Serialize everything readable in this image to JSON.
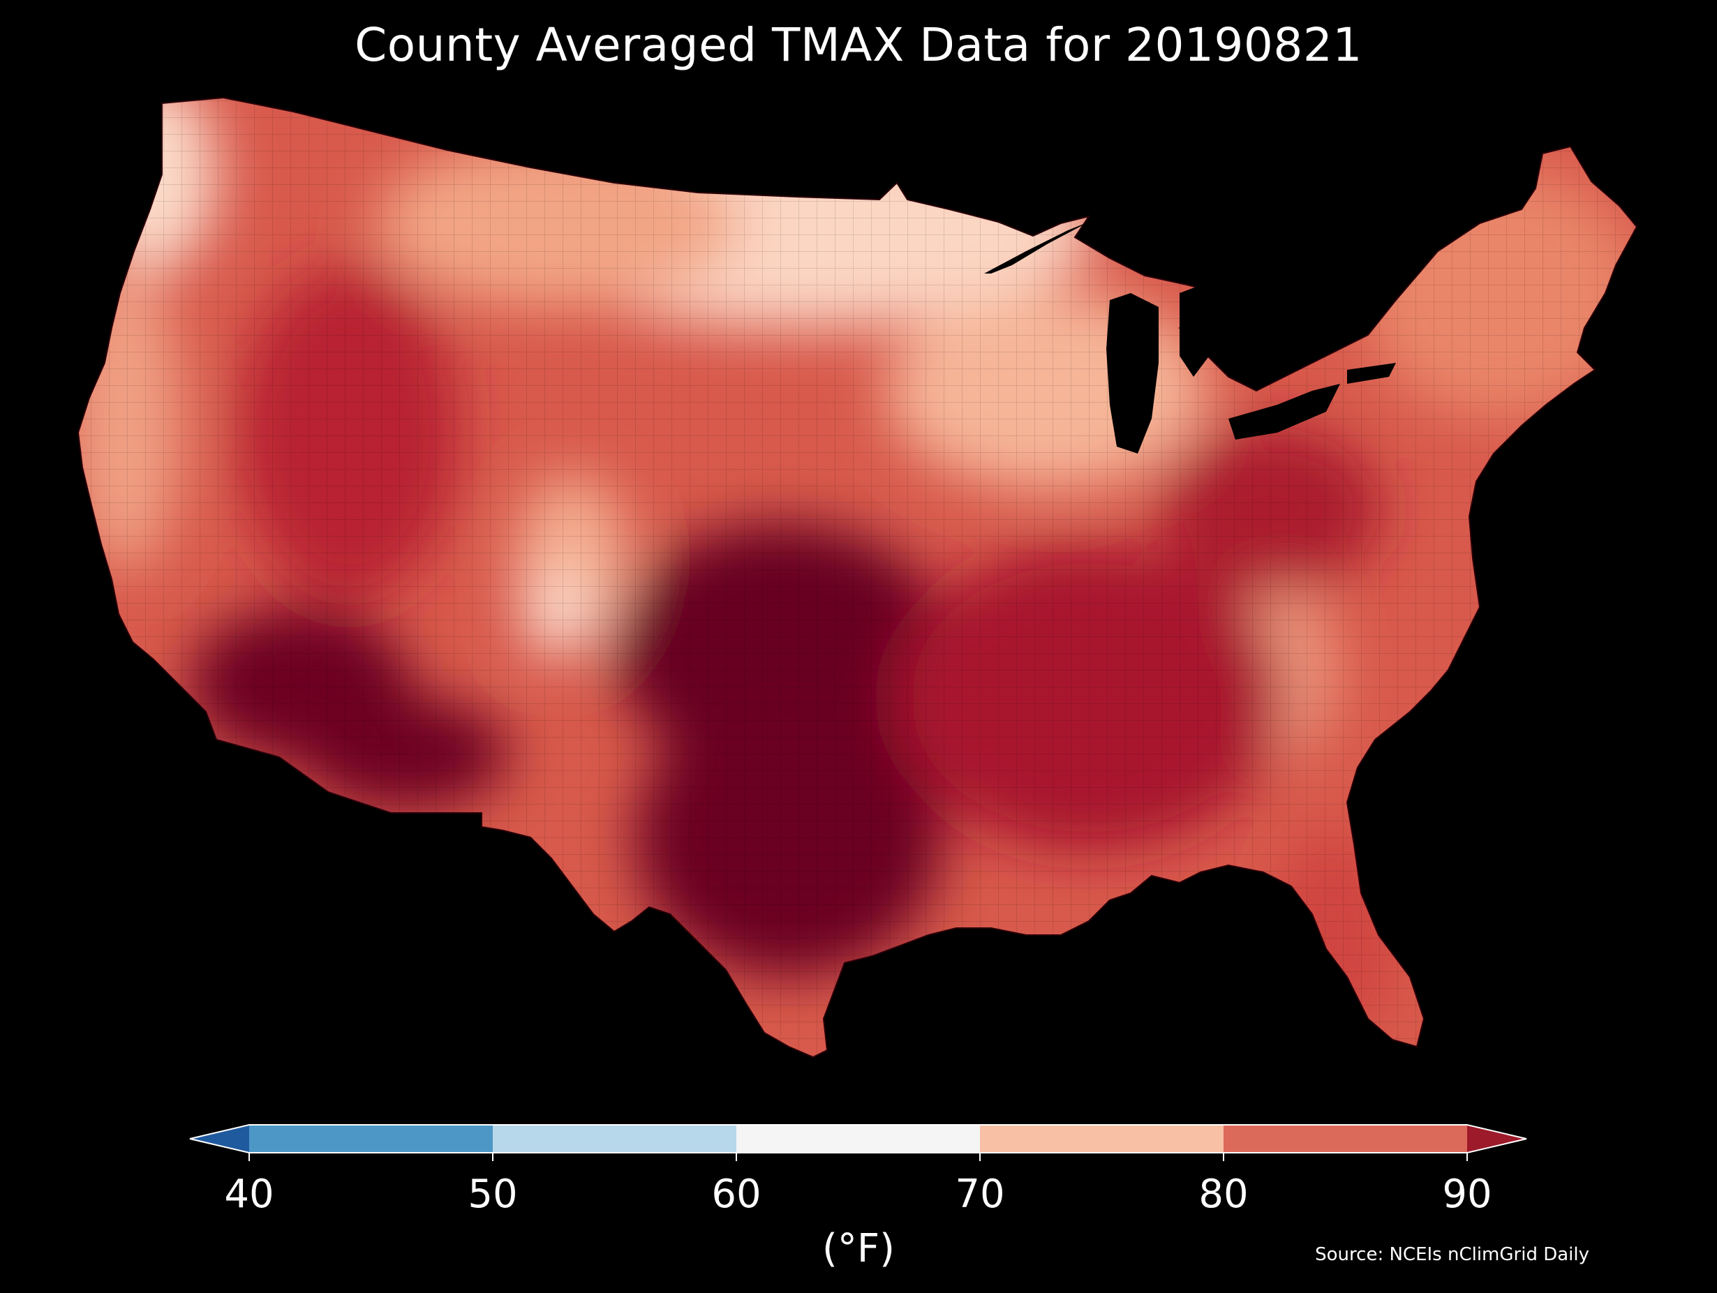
{
  "title": "County Averaged TMAX Data for 20190821",
  "colorbar": {
    "ticks": [
      "40",
      "50",
      "60",
      "70",
      "80",
      "90"
    ],
    "units": "(°F)",
    "colors": {
      "below_40": "#1f5a9e",
      "40_50": "#4c97c6",
      "50_60": "#b7d7ea",
      "60_70": "#f5f5f5",
      "70_80": "#f8c0a5",
      "80_90": "#dc6a5a",
      "above_90": "#9d1a2a"
    }
  },
  "source": "Source: NCEIs nClimGrid Daily",
  "map_colors": {
    "darkest": "#67001f",
    "dark": "#8e0d26",
    "red": "#b81f2f",
    "mid": "#d0453f",
    "salmon": "#e2735e",
    "light_salmon": "#f3a585",
    "pale": "#fbd3bf",
    "near_white": "#fde8dc"
  }
}
